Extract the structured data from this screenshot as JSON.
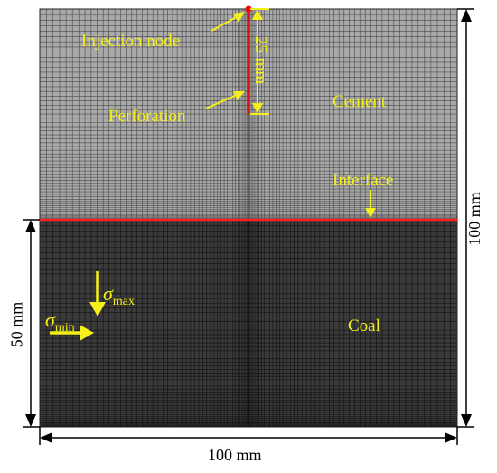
{
  "colors": {
    "cement_fill": "#a9a9a9",
    "cement_grid": "#4a4a4a",
    "coal_fill": "#3a3a3a",
    "coal_grid": "#111111",
    "interface_line": "#ff2020",
    "perforation": "#dd1111",
    "annotation": "#f5ef1a",
    "dimension": "#000000"
  },
  "labels": {
    "injection_node": "Injection node",
    "perforation": "Perforation",
    "perforation_length": "25 mm",
    "cement": "Cement",
    "interface": "Interface",
    "coal": "Coal",
    "sigma_symbol": "σ",
    "sigma_max_sub": "max",
    "sigma_min_sub": "min"
  },
  "dimensions": {
    "width": "100 mm",
    "height": "100 mm",
    "coal_height": "50 mm"
  },
  "icons": {
    "stress_max": "arrow-down-icon",
    "stress_min": "arrow-right-icon"
  }
}
